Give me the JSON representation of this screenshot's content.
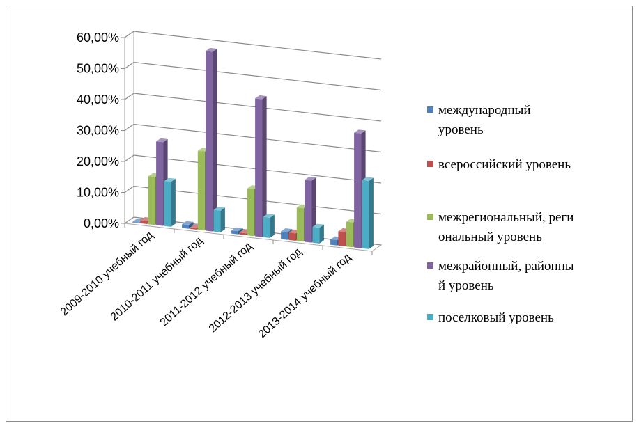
{
  "chart_data": {
    "type": "bar",
    "title": "",
    "xlabel": "",
    "ylabel": "",
    "ylim": [
      0,
      0.6
    ],
    "yticks": [
      "0,00%",
      "10,00%",
      "20,00%",
      "30,00%",
      "40,00%",
      "50,00%",
      "60,00%"
    ],
    "categories": [
      "2009-2010 учебный год",
      "2010-2011 учебный год",
      "2011-2012 учебный год",
      "2012-2013 учебный год",
      "2013-2014 учебный год"
    ],
    "series": [
      {
        "name": "международный уровень",
        "legend_lines": [
          "международный",
          "уровень"
        ],
        "color": "#4f81bd",
        "values": [
          0.002,
          0.012,
          0.01,
          0.025,
          0.017
        ]
      },
      {
        "name": "всероссийский уровень",
        "legend_lines": [
          "всероссийский уровень"
        ],
        "color": "#c0504d",
        "values": [
          0.01,
          0.004,
          0.006,
          0.024,
          0.046
        ]
      },
      {
        "name": "межрегиональный, региональный уровень",
        "legend_lines": [
          "межрегиональный, реги",
          "ональный уровень"
        ],
        "color": "#9bbb59",
        "values": [
          0.155,
          0.255,
          0.152,
          0.108,
          0.08
        ]
      },
      {
        "name": "межрайонный, районный уровень",
        "legend_lines": [
          "межрайонный, районны",
          "й уровень"
        ],
        "color": "#8064a2",
        "values": [
          0.27,
          0.58,
          0.445,
          0.2,
          0.37
        ]
      },
      {
        "name": "поселковый уровень",
        "legend_lines": [
          "поселковый уровень"
        ],
        "color": "#4bacc6",
        "values": [
          0.145,
          0.07,
          0.065,
          0.051,
          0.22
        ]
      }
    ],
    "grid": true,
    "legend_position": "right"
  }
}
